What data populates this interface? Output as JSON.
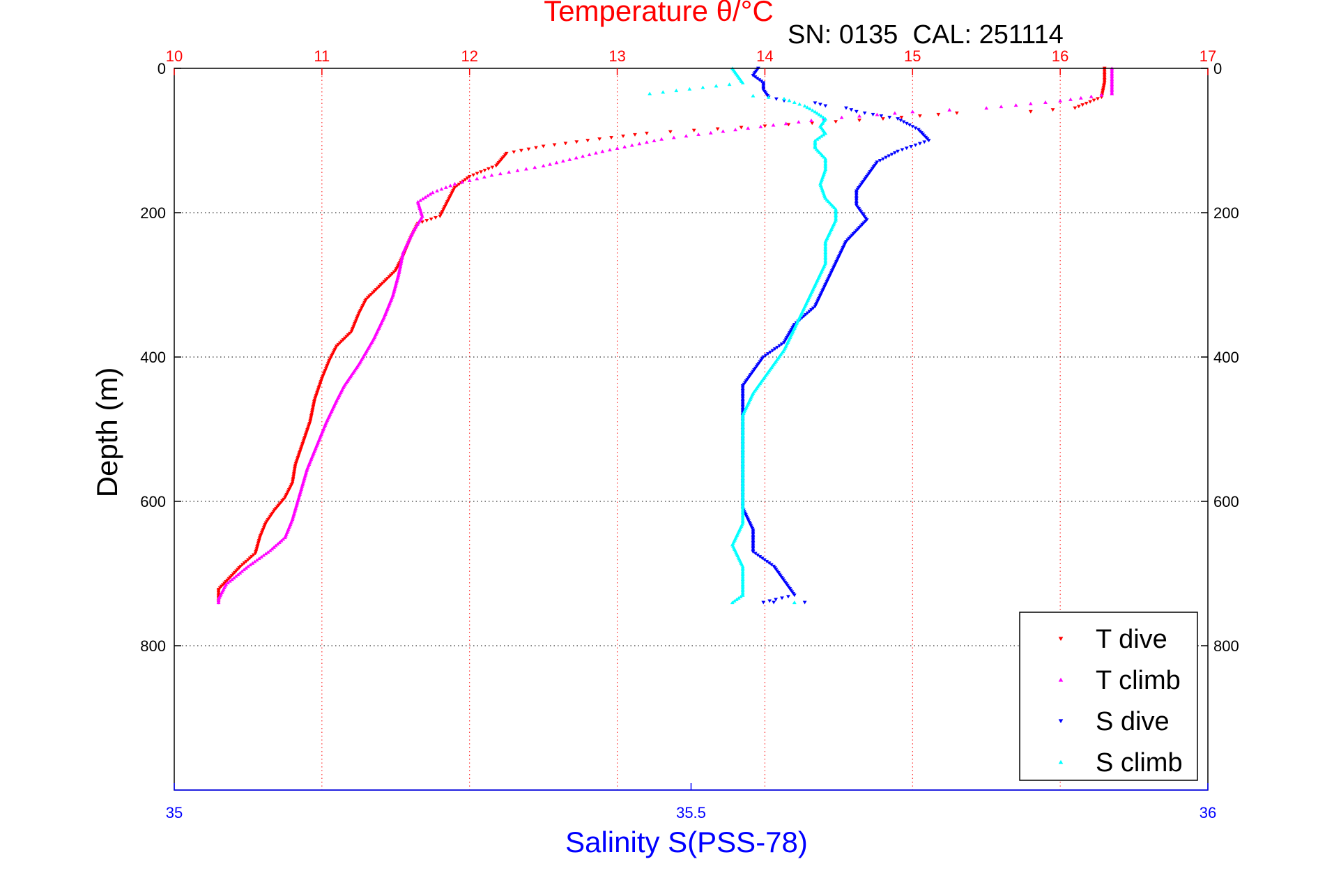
{
  "chart_data": {
    "type": "scatter",
    "title": "Temperature θ/°C",
    "annotation": "SN: 0135  CAL: 251114",
    "xlabel": "Salinity S(PSS-78)",
    "ylabel": "Depth (m)",
    "x_top": {
      "label": "Temperature θ/°C",
      "lim": [
        10,
        17
      ],
      "ticks": [
        "10",
        "11",
        "12",
        "13",
        "14",
        "15",
        "16",
        "17"
      ],
      "color": "#ff0000"
    },
    "x_bottom": {
      "label": "Salinity S(PSS-78)",
      "lim": [
        35,
        36
      ],
      "ticks": [
        "35",
        "35.5",
        "36"
      ],
      "color": "#0000ff"
    },
    "y": {
      "lim": [
        0,
        1000
      ],
      "reversed": true,
      "ticks": [
        "0",
        "200",
        "400",
        "600",
        "800"
      ]
    },
    "grid": true,
    "legend_position": "bottom-right",
    "series": [
      {
        "name": "T dive",
        "axis": "temperature",
        "marker": "triangle-down",
        "color": "#ff0000",
        "points": [
          [
            16.3,
            0
          ],
          [
            16.3,
            20
          ],
          [
            16.28,
            40
          ],
          [
            16.1,
            55
          ],
          [
            15.8,
            60
          ],
          [
            15.3,
            62
          ],
          [
            14.8,
            70
          ],
          [
            14.0,
            80
          ],
          [
            13.2,
            90
          ],
          [
            12.8,
            100
          ],
          [
            12.5,
            108
          ],
          [
            12.25,
            118
          ],
          [
            12.18,
            135
          ],
          [
            12.0,
            150
          ],
          [
            11.9,
            165
          ],
          [
            11.85,
            185
          ],
          [
            11.8,
            205
          ],
          [
            11.65,
            215
          ],
          [
            11.6,
            235
          ],
          [
            11.55,
            260
          ],
          [
            11.5,
            280
          ],
          [
            11.4,
            300
          ],
          [
            11.3,
            320
          ],
          [
            11.25,
            340
          ],
          [
            11.2,
            365
          ],
          [
            11.1,
            385
          ],
          [
            11.05,
            405
          ],
          [
            11.0,
            430
          ],
          [
            10.95,
            460
          ],
          [
            10.92,
            490
          ],
          [
            10.87,
            520
          ],
          [
            10.82,
            550
          ],
          [
            10.8,
            575
          ],
          [
            10.75,
            595
          ],
          [
            10.68,
            612
          ],
          [
            10.62,
            630
          ],
          [
            10.58,
            650
          ],
          [
            10.55,
            672
          ],
          [
            10.45,
            690
          ],
          [
            10.38,
            705
          ],
          [
            10.3,
            722
          ],
          [
            10.3,
            740
          ]
        ]
      },
      {
        "name": "T climb",
        "axis": "temperature",
        "marker": "triangle-up",
        "color": "#ff00ff",
        "points": [
          [
            16.35,
            0
          ],
          [
            16.35,
            20
          ],
          [
            16.35,
            35
          ],
          [
            16.0,
            45
          ],
          [
            15.5,
            55
          ],
          [
            15.0,
            60
          ],
          [
            14.4,
            70
          ],
          [
            13.8,
            85
          ],
          [
            13.3,
            98
          ],
          [
            12.9,
            115
          ],
          [
            12.5,
            135
          ],
          [
            12.15,
            148
          ],
          [
            11.9,
            160
          ],
          [
            11.75,
            172
          ],
          [
            11.65,
            185
          ],
          [
            11.68,
            205
          ],
          [
            11.62,
            225
          ],
          [
            11.55,
            255
          ],
          [
            11.52,
            285
          ],
          [
            11.48,
            315
          ],
          [
            11.42,
            345
          ],
          [
            11.35,
            375
          ],
          [
            11.25,
            410
          ],
          [
            11.15,
            440
          ],
          [
            11.1,
            460
          ],
          [
            11.03,
            490
          ],
          [
            10.97,
            520
          ],
          [
            10.9,
            555
          ],
          [
            10.85,
            590
          ],
          [
            10.8,
            625
          ],
          [
            10.75,
            650
          ],
          [
            10.65,
            668
          ],
          [
            10.5,
            690
          ],
          [
            10.35,
            715
          ],
          [
            10.3,
            735
          ],
          [
            10.3,
            740
          ]
        ]
      },
      {
        "name": "S dive",
        "axis": "salinity",
        "marker": "triangle-down",
        "color": "#0000ff",
        "points": [
          [
            35.565,
            0
          ],
          [
            35.56,
            10
          ],
          [
            35.57,
            20
          ],
          [
            35.57,
            30
          ],
          [
            35.575,
            40
          ],
          [
            35.59,
            45
          ],
          [
            35.62,
            48
          ],
          [
            35.63,
            52
          ],
          [
            35.65,
            55
          ],
          [
            35.66,
            60
          ],
          [
            35.7,
            70
          ],
          [
            35.72,
            85
          ],
          [
            35.73,
            100
          ],
          [
            35.7,
            115
          ],
          [
            35.68,
            130
          ],
          [
            35.67,
            150
          ],
          [
            35.66,
            170
          ],
          [
            35.66,
            190
          ],
          [
            35.67,
            210
          ],
          [
            35.65,
            240
          ],
          [
            35.64,
            270
          ],
          [
            35.63,
            300
          ],
          [
            35.62,
            330
          ],
          [
            35.6,
            355
          ],
          [
            35.59,
            380
          ],
          [
            35.57,
            400
          ],
          [
            35.56,
            420
          ],
          [
            35.55,
            440
          ],
          [
            35.55,
            460
          ],
          [
            35.55,
            490
          ],
          [
            35.55,
            520
          ],
          [
            35.55,
            550
          ],
          [
            35.55,
            580
          ],
          [
            35.55,
            610
          ],
          [
            35.56,
            640
          ],
          [
            35.56,
            670
          ],
          [
            35.58,
            690
          ],
          [
            35.59,
            710
          ],
          [
            35.6,
            730
          ],
          [
            35.57,
            740
          ],
          [
            35.58,
            740
          ],
          [
            35.61,
            740
          ]
        ]
      },
      {
        "name": "S climb",
        "axis": "salinity",
        "marker": "triangle-up",
        "color": "#00ffff",
        "points": [
          [
            35.54,
            0
          ],
          [
            35.545,
            10
          ],
          [
            35.55,
            20
          ],
          [
            35.46,
            35
          ],
          [
            35.56,
            38
          ],
          [
            35.59,
            42
          ],
          [
            35.6,
            47
          ],
          [
            35.61,
            52
          ],
          [
            35.62,
            60
          ],
          [
            35.63,
            70
          ],
          [
            35.625,
            80
          ],
          [
            35.63,
            90
          ],
          [
            35.62,
            100
          ],
          [
            35.62,
            110
          ],
          [
            35.63,
            125
          ],
          [
            35.63,
            140
          ],
          [
            35.625,
            160
          ],
          [
            35.63,
            180
          ],
          [
            35.64,
            195
          ],
          [
            35.64,
            210
          ],
          [
            35.63,
            240
          ],
          [
            35.63,
            270
          ],
          [
            35.62,
            300
          ],
          [
            35.61,
            330
          ],
          [
            35.6,
            360
          ],
          [
            35.59,
            390
          ],
          [
            35.58,
            410
          ],
          [
            35.57,
            430
          ],
          [
            35.56,
            450
          ],
          [
            35.55,
            480
          ],
          [
            35.55,
            510
          ],
          [
            35.55,
            540
          ],
          [
            35.55,
            570
          ],
          [
            35.55,
            600
          ],
          [
            35.55,
            630
          ],
          [
            35.54,
            660
          ],
          [
            35.55,
            690
          ],
          [
            35.55,
            715
          ],
          [
            35.55,
            730
          ],
          [
            35.54,
            740
          ],
          [
            35.6,
            740
          ]
        ]
      }
    ]
  }
}
